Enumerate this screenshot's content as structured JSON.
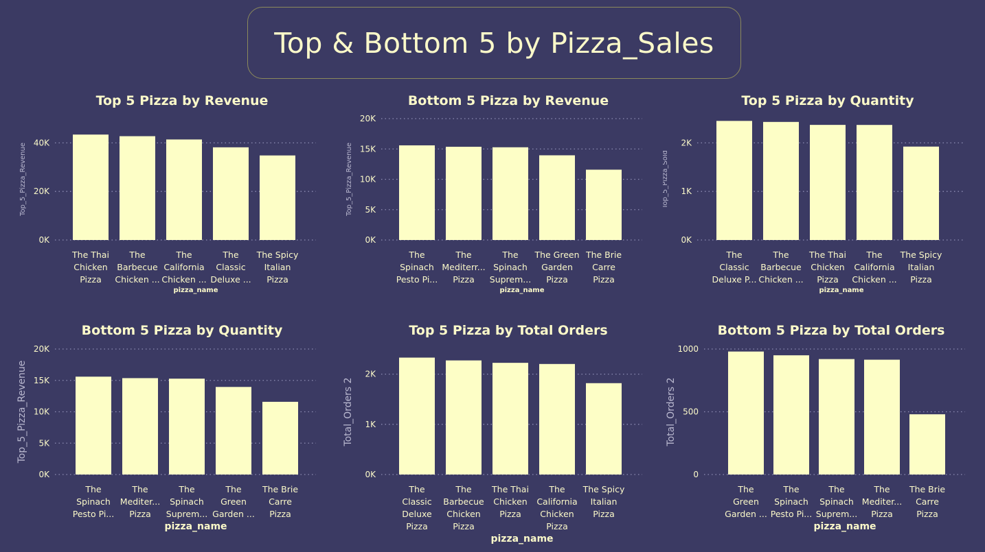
{
  "dashboard": {
    "title": "Top & Bottom 5 by Pizza_Sales",
    "colors": {
      "background": "#3b3a63",
      "bar": "#fdfec6",
      "text": "#fbf9c9",
      "grid": "#8e8db4"
    }
  },
  "chart_data": [
    {
      "type": "bar",
      "title": "Top 5 Pizza by Revenue",
      "xlabel": "pizza_name",
      "ylabel": "Top_5_Pizza_Revenue",
      "categories": [
        [
          "The Thai",
          "Chicken",
          "Pizza"
        ],
        [
          "The",
          "Barbecue",
          "Chicken ..."
        ],
        [
          "The",
          "California",
          "Chicken ..."
        ],
        [
          "The",
          "Classic",
          "Deluxe ..."
        ],
        [
          "The Spicy",
          "Italian",
          "Pizza"
        ]
      ],
      "values": [
        43434,
        42768,
        41410,
        38180,
        34831
      ],
      "ylim": [
        0,
        50000
      ],
      "ticks": [
        0,
        20000,
        40000
      ],
      "tick_labels": [
        "0K",
        "20K",
        "40K"
      ],
      "grid": true
    },
    {
      "type": "bar",
      "title": "Bottom 5 Pizza by Revenue",
      "xlabel": "pizza_name",
      "ylabel": "Top_5_Pizza_Revenue",
      "categories": [
        [
          "The",
          "Spinach",
          "Pesto Pi..."
        ],
        [
          "The",
          "Mediterr...",
          "Pizza"
        ],
        [
          "The",
          "Spinach",
          "Suprem..."
        ],
        [
          "The Green",
          "Garden",
          "Pizza"
        ],
        [
          "The Brie",
          "Carre",
          "Pizza"
        ]
      ],
      "values": [
        15596,
        15361,
        15278,
        13956,
        11588
      ],
      "ylim": [
        0,
        20000
      ],
      "ticks": [
        0,
        5000,
        10000,
        15000,
        20000
      ],
      "tick_labels": [
        "0K",
        "5K",
        "10K",
        "15K",
        "20K"
      ],
      "grid": true
    },
    {
      "type": "bar",
      "title": "Top 5 Pizza by Quantity",
      "xlabel": "pizza_name",
      "ylabel": "Top_5_Pizza_Sold",
      "categories": [
        [
          "The",
          "Classic",
          "Deluxe P..."
        ],
        [
          "The",
          "Barbecue",
          "Chicken ..."
        ],
        [
          "The Thai",
          "Chicken",
          "Pizza"
        ],
        [
          "The",
          "California",
          "Chicken ..."
        ],
        [
          "The Spicy",
          "Italian",
          "Pizza"
        ]
      ],
      "values": [
        2453,
        2432,
        2371,
        2370,
        1924
      ],
      "ylim": [
        0,
        2500
      ],
      "ticks": [
        0,
        1000,
        2000
      ],
      "tick_labels": [
        "0K",
        "1K",
        "2K"
      ],
      "grid": true
    },
    {
      "type": "bar",
      "title": "Bottom 5 Pizza by Quantity",
      "xlabel": "pizza_name",
      "ylabel": "Top_5_Pizza_Revenue",
      "categories": [
        [
          "The",
          "Spinach",
          "Pesto Pi..."
        ],
        [
          "The",
          "Mediter...",
          "Pizza"
        ],
        [
          "The",
          "Spinach",
          "Suprem..."
        ],
        [
          "The",
          "Green",
          "Garden ..."
        ],
        [
          "The Brie",
          "Carre",
          "Pizza"
        ]
      ],
      "values": [
        15596,
        15361,
        15278,
        13956,
        11588
      ],
      "ylim": [
        0,
        20000
      ],
      "ticks": [
        0,
        5000,
        10000,
        15000,
        20000
      ],
      "tick_labels": [
        "0K",
        "5K",
        "10K",
        "15K",
        "20K"
      ],
      "grid": true
    },
    {
      "type": "bar",
      "title": "Top 5 Pizza by Total Orders",
      "xlabel": "pizza_name",
      "ylabel": "Total_Orders 2",
      "categories": [
        [
          "The",
          "Classic",
          "Deluxe",
          "Pizza"
        ],
        [
          "The",
          "Barbecue",
          "Chicken",
          "Pizza"
        ],
        [
          "The Thai",
          "Chicken",
          "Pizza"
        ],
        [
          "The",
          "California",
          "Chicken",
          "Pizza"
        ],
        [
          "The Spicy",
          "Italian",
          "Pizza"
        ]
      ],
      "values": [
        2329,
        2273,
        2225,
        2202,
        1820
      ],
      "ylim": [
        0,
        2500
      ],
      "ticks": [
        0,
        1000,
        2000
      ],
      "tick_labels": [
        "0K",
        "1K",
        "2K"
      ],
      "grid": true
    },
    {
      "type": "bar",
      "title": "Bottom 5 Pizza by Total Orders",
      "xlabel": "pizza_name",
      "ylabel": "Total_Orders 2",
      "categories": [
        [
          "The",
          "Green",
          "Garden ..."
        ],
        [
          "The",
          "Spinach",
          "Pesto Pi..."
        ],
        [
          "The",
          "Spinach",
          "Suprem..."
        ],
        [
          "The",
          "Mediter...",
          "Pizza"
        ],
        [
          "The Brie",
          "Carre",
          "Pizza"
        ]
      ],
      "values": [
        980,
        950,
        920,
        915,
        480
      ],
      "ylim": [
        0,
        1000
      ],
      "ticks": [
        0,
        500,
        1000
      ],
      "tick_labels": [
        "0",
        "500",
        "1000"
      ],
      "grid": true
    }
  ]
}
